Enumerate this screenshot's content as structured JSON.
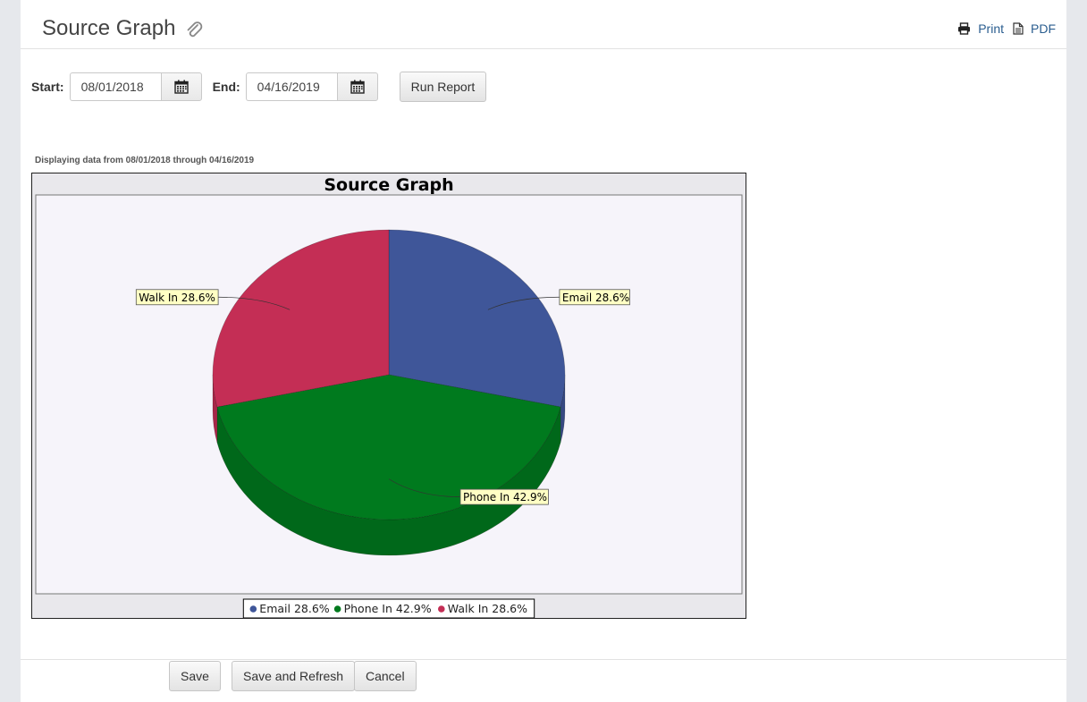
{
  "header": {
    "title": "Source Graph",
    "print_label": "Print",
    "pdf_label": "PDF"
  },
  "filters": {
    "start_label": "Start:",
    "start_value": "08/01/2018",
    "end_label": "End:",
    "end_value": "04/16/2019",
    "run_label": "Run Report"
  },
  "range_note": "Displaying data from 08/01/2018 through 04/16/2019",
  "chart_data": {
    "type": "pie",
    "title": "Source Graph",
    "legend_position": "bottom",
    "slices": [
      {
        "label": "Email",
        "value": 28.6,
        "display": "Email 28.6%",
        "color": "#3f5699"
      },
      {
        "label": "Phone In",
        "value": 42.9,
        "display": "Phone In 42.9%",
        "color": "#007a1e"
      },
      {
        "label": "Walk In",
        "value": 28.6,
        "display": "Walk In 28.6%",
        "color": "#c42e55"
      }
    ]
  },
  "footer": {
    "save_label": "Save",
    "save_refresh_label": "Save and Refresh",
    "cancel_label": "Cancel"
  }
}
